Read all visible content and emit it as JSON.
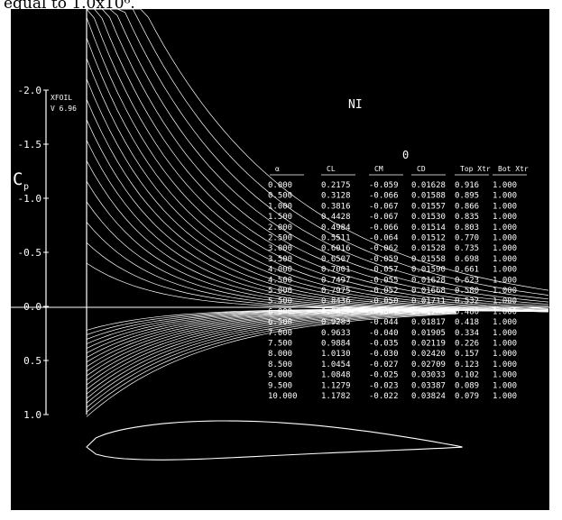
{
  "caption": "equal to 1.0x10⁶.",
  "chart_data": {
    "type": "line",
    "title": "NI",
    "subtitle": "0",
    "program": [
      "XFOIL",
      "V 6.96"
    ],
    "ylabel": "Cp",
    "ylabel_sub": "p",
    "ylabel_main": "C",
    "y_ticks": [
      "-2.0",
      "-1.5",
      "-1.0",
      "-0.5",
      "0.0",
      "0.5",
      "1.0"
    ],
    "ylim": [
      1.0,
      -2.0
    ],
    "y_inverted": true,
    "grid": false,
    "series_description_count": 20,
    "table": {
      "headers": [
        "α",
        "CL",
        "CM",
        "CD",
        "Top Xtr",
        "Bot Xtr"
      ],
      "rows": [
        [
          "0.000",
          "0.2175",
          "-0.059",
          "0.01628",
          "0.916",
          "1.000"
        ],
        [
          "0.500",
          "0.3128",
          "-0.066",
          "0.01588",
          "0.895",
          "1.000"
        ],
        [
          "1.000",
          "0.3816",
          "-0.067",
          "0.01557",
          "0.866",
          "1.000"
        ],
        [
          "1.500",
          "0.4428",
          "-0.067",
          "0.01530",
          "0.835",
          "1.000"
        ],
        [
          "2.000",
          "0.4984",
          "-0.066",
          "0.01514",
          "0.803",
          "1.000"
        ],
        [
          "2.500",
          "0.5511",
          "-0.064",
          "0.01512",
          "0.770",
          "1.000"
        ],
        [
          "3.000",
          "0.6016",
          "-0.062",
          "0.01528",
          "0.735",
          "1.000"
        ],
        [
          "3.500",
          "0.6507",
          "-0.059",
          "0.01558",
          "0.698",
          "1.000"
        ],
        [
          "4.000",
          "0.7001",
          "-0.057",
          "0.01590",
          "0.661",
          "1.000"
        ],
        [
          "4.500",
          "0.7497",
          "-0.055",
          "0.01628",
          "0.623",
          "1.000"
        ],
        [
          "5.000",
          "0.7975",
          "-0.052",
          "0.01668",
          "0.580",
          "1.000"
        ],
        [
          "5.500",
          "0.8436",
          "-0.050",
          "0.01711",
          "0.532",
          "1.000"
        ],
        [
          "6.000",
          "0.8877",
          "-0.047",
          "0.01760",
          "0.480",
          "1.000"
        ],
        [
          "6.500",
          "0.9283",
          "-0.044",
          "0.01817",
          "0.418",
          "1.000"
        ],
        [
          "7.000",
          "0.9633",
          "-0.040",
          "0.01905",
          "0.334",
          "1.000"
        ],
        [
          "7.500",
          "0.9884",
          "-0.035",
          "0.02119",
          "0.226",
          "1.000"
        ],
        [
          "8.000",
          "1.0130",
          "-0.030",
          "0.02420",
          "0.157",
          "1.000"
        ],
        [
          "8.500",
          "1.0454",
          "-0.027",
          "0.02709",
          "0.123",
          "1.000"
        ],
        [
          "9.000",
          "1.0848",
          "-0.025",
          "0.03033",
          "0.102",
          "1.000"
        ],
        [
          "9.500",
          "1.1279",
          "-0.023",
          "0.03387",
          "0.089",
          "1.000"
        ],
        [
          "10.000",
          "1.1782",
          "-0.022",
          "0.03824",
          "0.079",
          "1.000"
        ]
      ]
    },
    "colors": {
      "background": "#000000",
      "foreground": "#ffffff"
    }
  }
}
